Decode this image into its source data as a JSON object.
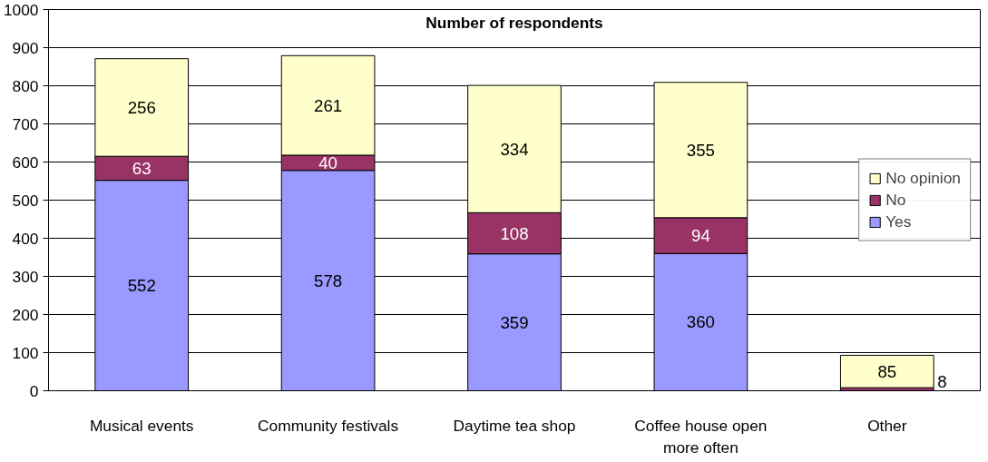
{
  "chart_data": {
    "type": "bar",
    "title": "Number of respondents",
    "stacked": true,
    "categories": [
      "Musical events",
      "Community festivals",
      "Daytime tea shop",
      "Coffee house open more often",
      "Other"
    ],
    "series": [
      {
        "name": "Yes",
        "color": "#9999ff",
        "values": [
          552,
          578,
          359,
          360,
          null
        ],
        "value_labels": [
          "552",
          "578",
          "359",
          "360",
          null
        ]
      },
      {
        "name": "No",
        "color": "#993366",
        "values": [
          63,
          40,
          108,
          94,
          8
        ],
        "value_labels": [
          "63",
          "40",
          "108",
          "94",
          "8"
        ]
      },
      {
        "name": "No opinion",
        "color": "#ffffcc",
        "values": [
          256,
          261,
          334,
          355,
          85
        ],
        "value_labels": [
          "256",
          "261",
          "334",
          "355",
          "85"
        ]
      }
    ],
    "ylim": [
      0,
      1000
    ],
    "yticks": [
      0,
      100,
      200,
      300,
      400,
      500,
      600,
      700,
      800,
      900,
      1000
    ],
    "grid": "y",
    "legend": "right"
  }
}
